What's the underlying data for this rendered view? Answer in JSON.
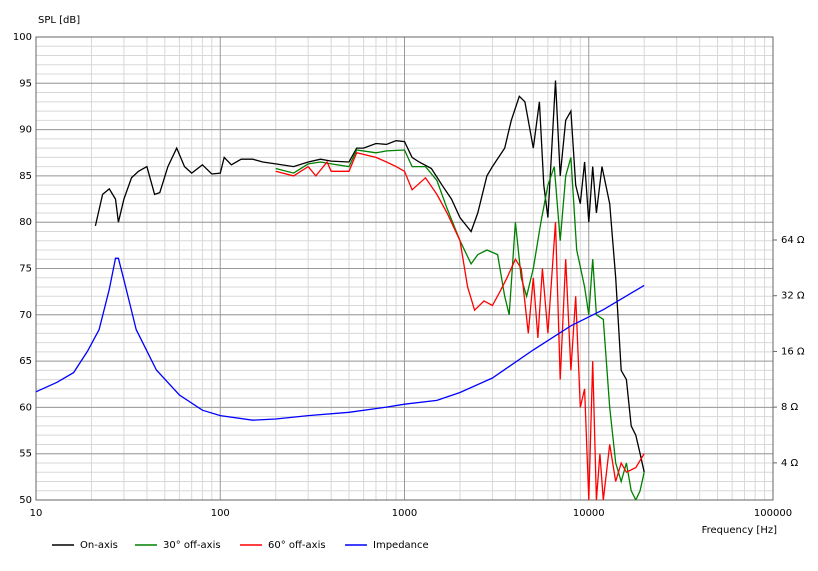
{
  "chart_data": {
    "type": "line",
    "y_label": "SPL [dB]",
    "x_label": "Frequency [Hz]",
    "xlog": true,
    "y2log": true,
    "grid": true,
    "xlim": [
      10,
      100000
    ],
    "xticks": [
      10,
      100,
      1000,
      10000,
      100000
    ],
    "ylim": [
      50,
      100
    ],
    "yticks": [
      50,
      55,
      60,
      65,
      70,
      75,
      80,
      85,
      90,
      95,
      100
    ],
    "y2lim": [
      2.52,
      800
    ],
    "y2ticks": [
      {
        "value": 4,
        "label": "4 Ω"
      },
      {
        "value": 8,
        "label": "8 Ω"
      },
      {
        "value": 16,
        "label": "16 Ω"
      },
      {
        "value": 32,
        "label": "32 Ω"
      },
      {
        "value": 64,
        "label": "64 Ω"
      }
    ],
    "legend": "bottom",
    "series": [
      {
        "name": "On-axis",
        "color": "#000000",
        "x": [
          21,
          23,
          25,
          27,
          28,
          30,
          33,
          36,
          40,
          44,
          47,
          52,
          58,
          64,
          70,
          80,
          90,
          100,
          105,
          115,
          130,
          150,
          170,
          200,
          250,
          300,
          350,
          400,
          500,
          550,
          600,
          700,
          800,
          900,
          1000,
          1100,
          1200,
          1400,
          1600,
          1800,
          2000,
          2300,
          2500,
          2800,
          3000,
          3500,
          3800,
          4200,
          4500,
          5000,
          5400,
          5700,
          6000,
          6300,
          6600,
          7000,
          7500,
          8000,
          8500,
          9000,
          9500,
          10000,
          10500,
          11000,
          11800,
          13000,
          14000,
          15000,
          16000,
          17000,
          18000,
          19000,
          20000
        ],
        "values": [
          79.6,
          83,
          83.6,
          82.5,
          80,
          82.5,
          84.8,
          85.5,
          86,
          83,
          83.2,
          86,
          88,
          86,
          85.3,
          86.2,
          85.2,
          85.3,
          87,
          86.2,
          86.8,
          86.8,
          86.5,
          86.3,
          86,
          86.5,
          86.8,
          86.6,
          86.5,
          88,
          88,
          88.5,
          88.4,
          88.8,
          88.7,
          87,
          86.5,
          85.8,
          84,
          82.5,
          80.5,
          79,
          81,
          85,
          86,
          88,
          91,
          93.6,
          93,
          88,
          93,
          84,
          80.5,
          88,
          95.3,
          85,
          91,
          92,
          84,
          82,
          86.5,
          80,
          86,
          81,
          86,
          82,
          74,
          64,
          63,
          58,
          57,
          55,
          53
        ]
      },
      {
        "name": "30° off-axis",
        "color": "#008000",
        "x": [
          200,
          250,
          300,
          350,
          400,
          500,
          550,
          700,
          800,
          1000,
          1100,
          1300,
          1500,
          1700,
          2000,
          2300,
          2500,
          2800,
          3200,
          3500,
          3700,
          4000,
          4300,
          4600,
          5000,
          5500,
          6000,
          6500,
          7000,
          7500,
          8000,
          8600,
          9500,
          10000,
          10500,
          11000,
          12000,
          13000,
          14000,
          15000,
          16000,
          17000,
          18000,
          19000,
          20000
        ],
        "values": [
          85.8,
          85.3,
          86.3,
          86.5,
          86.3,
          86,
          87.8,
          87.5,
          87.7,
          87.8,
          86,
          86,
          84.5,
          81.5,
          78,
          75.5,
          76.5,
          77,
          76.5,
          72,
          70,
          80,
          74,
          72,
          75,
          80,
          84,
          86,
          78,
          85,
          87,
          77,
          73,
          70,
          76,
          70,
          69.5,
          60,
          54,
          52,
          54,
          51,
          50,
          51,
          53
        ]
      },
      {
        "name": "60° off-axis",
        "color": "#ff0000",
        "x": [
          200,
          250,
          300,
          330,
          380,
          400,
          500,
          550,
          700,
          800,
          900,
          1000,
          1100,
          1300,
          1500,
          1700,
          2000,
          2200,
          2400,
          2700,
          3000,
          3300,
          3600,
          4000,
          4300,
          4700,
          5000,
          5300,
          5600,
          6000,
          6600,
          7000,
          7500,
          8000,
          8500,
          9000,
          9500,
          10000,
          10500,
          11000,
          11500,
          12000,
          13000,
          14000,
          15000,
          16000,
          18000,
          20000
        ],
        "values": [
          85.5,
          85,
          86,
          85,
          86.5,
          85.5,
          85.5,
          87.5,
          87,
          86.5,
          86,
          85.5,
          83.5,
          84.8,
          83,
          81,
          78,
          73,
          70.5,
          71.5,
          71,
          72.5,
          74,
          76,
          75,
          68,
          74,
          67.5,
          75,
          68,
          80,
          63,
          76,
          64,
          72,
          60,
          62,
          50,
          65,
          50,
          55,
          50,
          56,
          52,
          54,
          53,
          53.5,
          55
        ]
      },
      {
        "name": "Impedance",
        "color": "#0000ff",
        "axis": "y2",
        "x": [
          10,
          13,
          16,
          19,
          22,
          25,
          27,
          28,
          30,
          35,
          45,
          60,
          80,
          100,
          150,
          200,
          300,
          500,
          800,
          1000,
          1500,
          2000,
          3000,
          5000,
          8000,
          12000,
          20000
        ],
        "values": [
          9.68,
          10.9,
          12.3,
          16,
          21,
          34.7,
          51,
          51,
          39,
          21,
          12.7,
          9.3,
          7.7,
          7.2,
          6.8,
          6.9,
          7.2,
          7.5,
          8,
          8.3,
          8.7,
          9.6,
          11.5,
          16.3,
          22,
          26.9,
          36.4
        ]
      }
    ]
  }
}
